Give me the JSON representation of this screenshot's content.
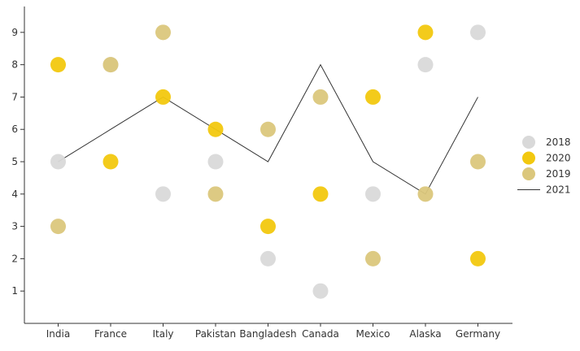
{
  "chart_data": {
    "type": "scatter",
    "categories": [
      "India",
      "France",
      "Italy",
      "Pakistan",
      "Bangladesh",
      "Canada",
      "Mexico",
      "Alaska",
      "Germany"
    ],
    "ylim": [
      0,
      9.8
    ],
    "yticks": [
      1,
      2,
      3,
      4,
      5,
      6,
      7,
      8,
      9
    ],
    "grid": false,
    "legend_position": "right",
    "series": [
      {
        "name": "2018",
        "kind": "scatter",
        "color": "#d9d9d9",
        "values": [
          5,
          8,
          4,
          5,
          2,
          1,
          4,
          8,
          9
        ]
      },
      {
        "name": "2020",
        "kind": "scatter",
        "color": "#f2c80f",
        "values": [
          8,
          5,
          7,
          6,
          3,
          4,
          7,
          9,
          2
        ]
      },
      {
        "name": "2019",
        "kind": "scatter",
        "color": "#dbc77c",
        "values": [
          3,
          8,
          9,
          4,
          6,
          7,
          2,
          4,
          5
        ]
      },
      {
        "name": "2021",
        "kind": "line",
        "color": "#333333",
        "values": [
          5,
          6,
          7,
          6,
          5,
          8,
          5,
          4,
          7
        ]
      }
    ]
  }
}
